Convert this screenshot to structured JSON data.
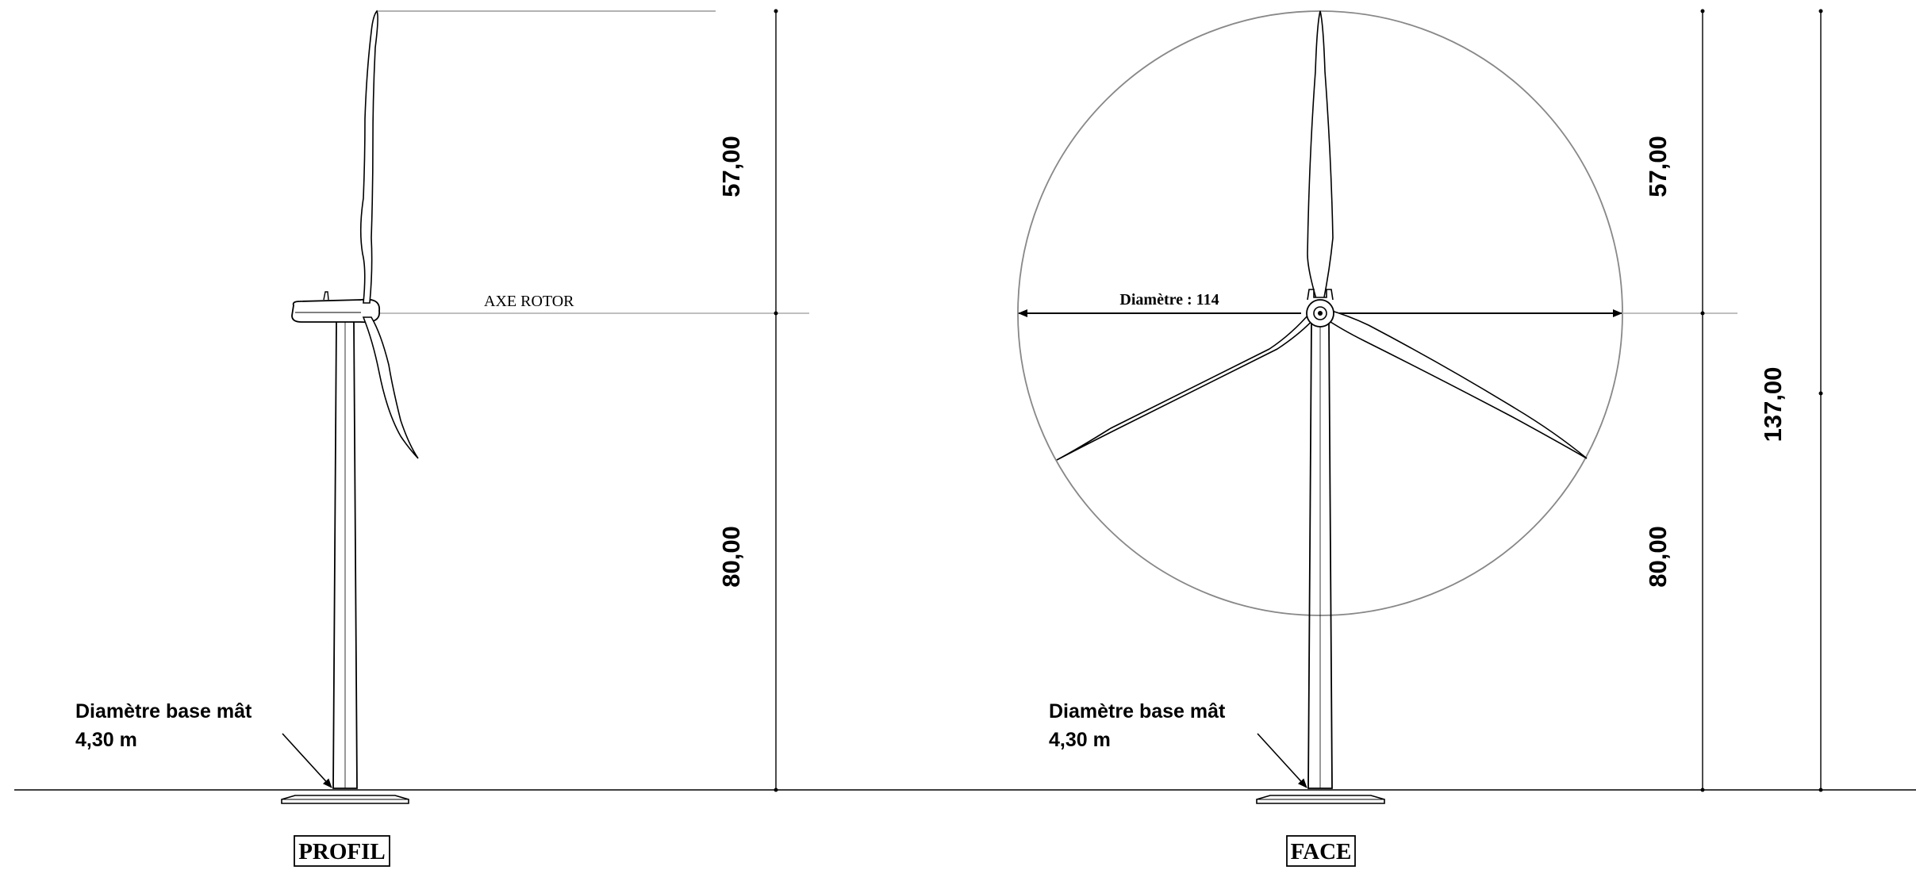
{
  "views": {
    "profile": {
      "label": "PROFIL",
      "rotor_axis_label": "AXE ROTOR"
    },
    "face": {
      "label": "FACE",
      "diameter_label": "Diamètre : 114"
    }
  },
  "dimensions": {
    "rotor_radius_profile": "57,00",
    "hub_height_profile": "80,00",
    "rotor_radius_face": "57,00",
    "hub_height_face": "80,00",
    "total_height": "137,00"
  },
  "notes": {
    "profile_base_line1": "Diamètre base mât",
    "profile_base_line2": "4,30 m",
    "face_base_line1": "Diamètre base mât",
    "face_base_line2": "4,30 m"
  }
}
